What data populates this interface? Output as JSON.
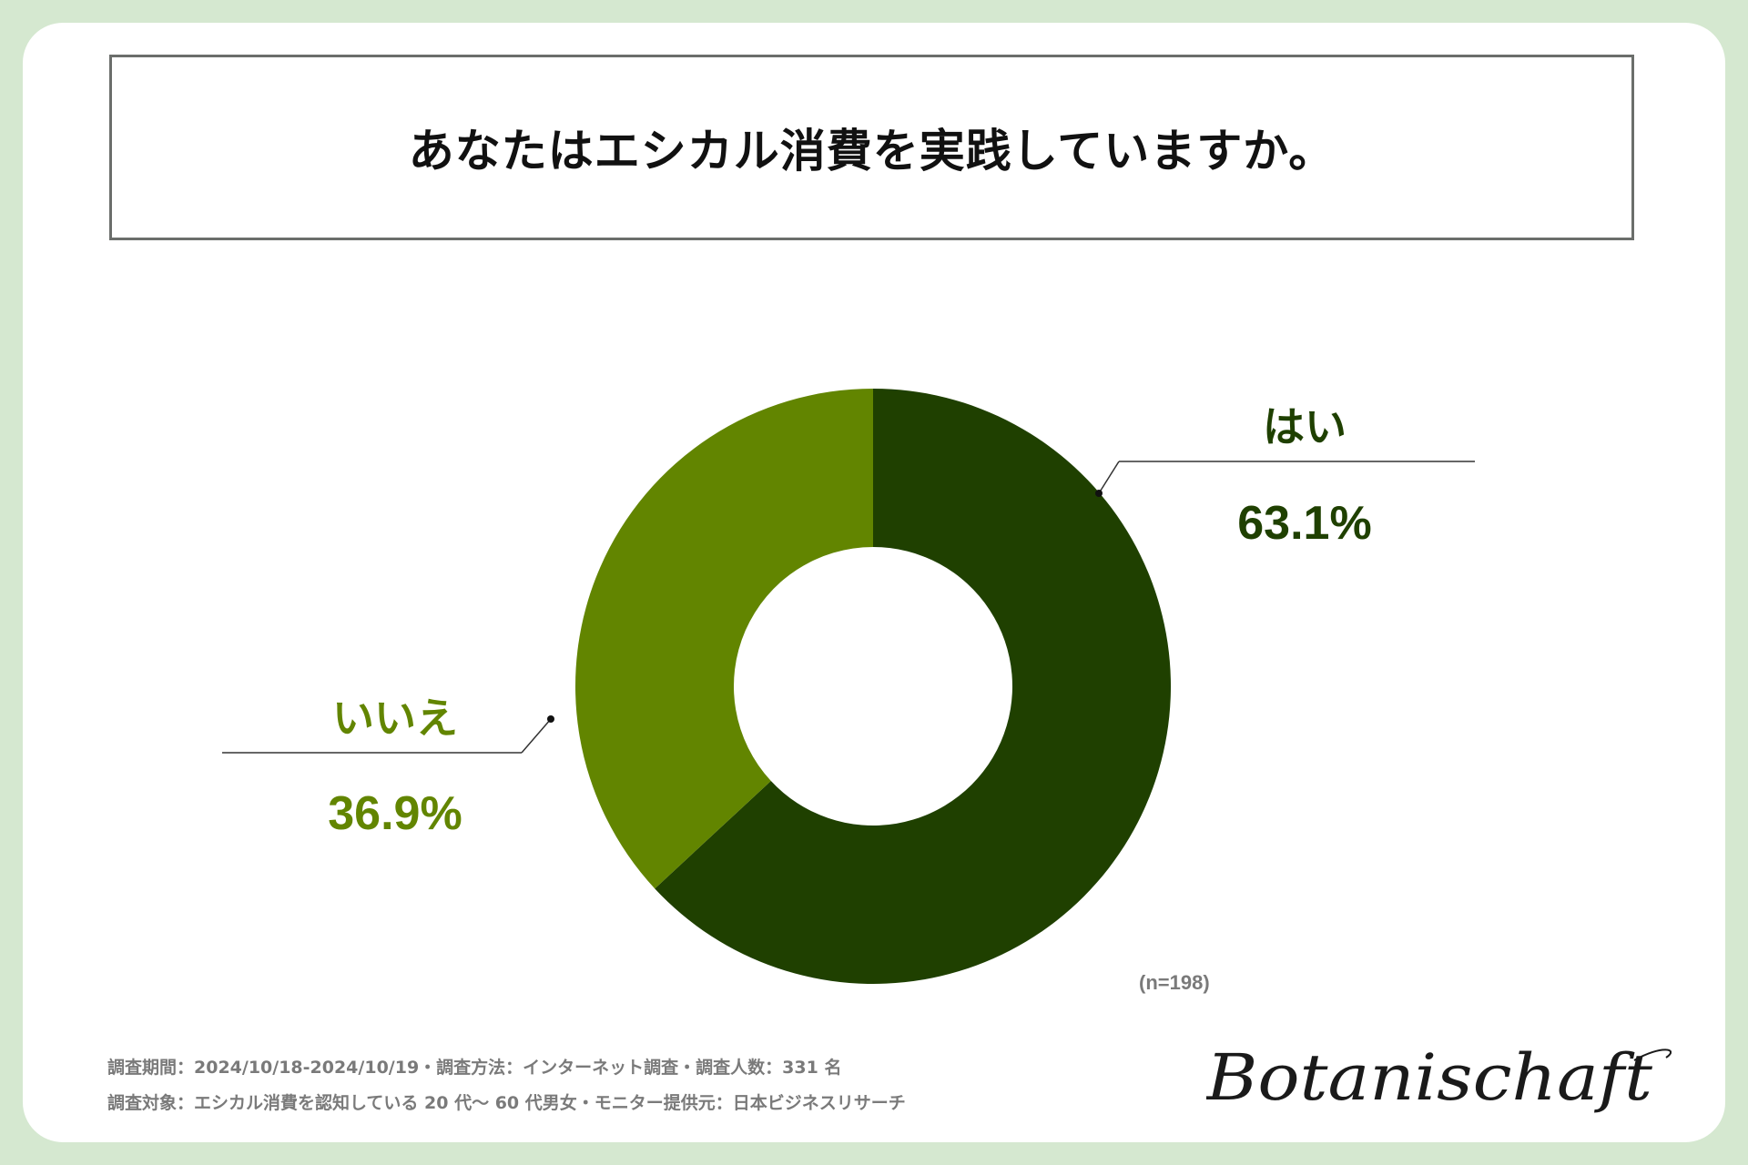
{
  "title": "あなたはエシカル消費を実践していますか。",
  "chart_data": {
    "type": "pie",
    "donut": true,
    "slices": [
      {
        "label": "はい",
        "value": 63.1,
        "display": "63.1%",
        "color": "#1f4000"
      },
      {
        "label": "いいえ",
        "value": 36.9,
        "display": "36.9%",
        "color": "#628500"
      }
    ],
    "sample_size": "(n=198)"
  },
  "footer": {
    "line1": "調査期間：2024/10/18-2024/10/19・調査方法：インターネット調査・調査人数：331 名",
    "line2": "調査対象：エシカル消費を認知している 20 代〜 60 代男女・モニター提供元：日本ビジネスリサーチ"
  },
  "brand": "Botanischaft",
  "colors": {
    "background": "#d5e8d0",
    "card": "#ffffff",
    "dark_green": "#1f4000",
    "light_green": "#628500"
  }
}
